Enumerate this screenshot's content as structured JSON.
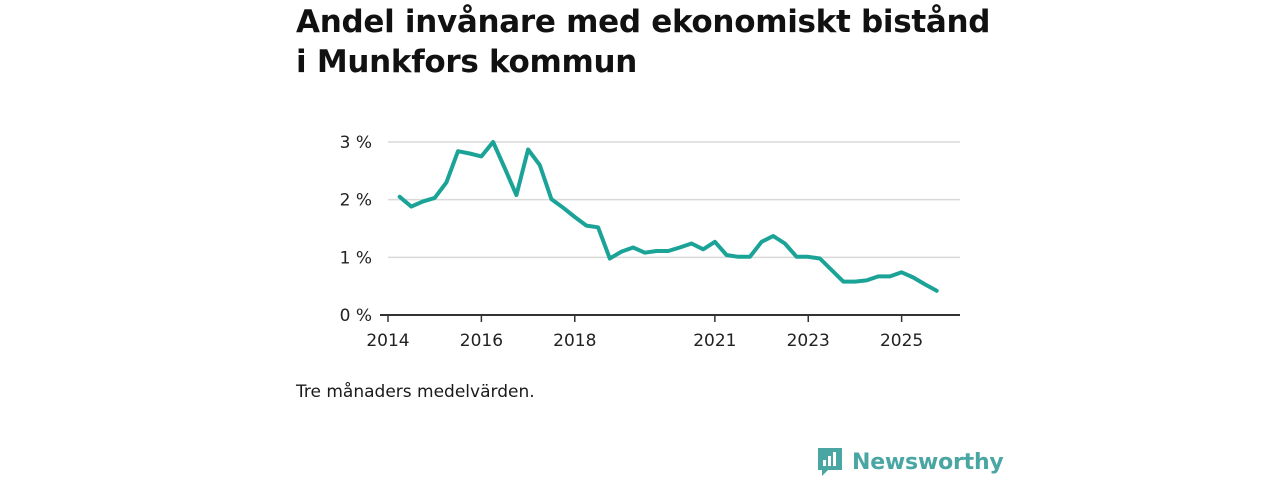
{
  "title": "Andel invånare med ekonomiskt bistånd i Munkfors kommun",
  "note": "Tre månaders medelvärden.",
  "brand": {
    "name": "Newsworthy",
    "icon": "newsworthy-logo-icon",
    "color": "#4aa6a3"
  },
  "chart_data": {
    "type": "line",
    "title": "Andel invånare med ekonomiskt bistånd i Munkfors kommun",
    "xlabel": "",
    "ylabel": "",
    "ylim": [
      0,
      3
    ],
    "xlim": [
      2014.0,
      2026.25
    ],
    "x_ticks": [
      2014,
      2016,
      2018,
      2021,
      2023,
      2025
    ],
    "x_tick_labels": [
      "2014",
      "2016",
      "2018",
      "2021",
      "2023",
      "2025"
    ],
    "y_ticks": [
      0,
      1,
      2,
      3
    ],
    "y_tick_labels": [
      "0 %",
      "1 %",
      "2 %",
      "3 %"
    ],
    "grid": "horizontal",
    "line_color": "#1aa396",
    "series": [
      {
        "x": [
          2014.25,
          2014.5,
          2014.75,
          2015.0,
          2015.25,
          2015.5,
          2015.75,
          2016.0,
          2016.25,
          2016.5,
          2016.75,
          2017.0,
          2017.25,
          2017.5,
          2017.75,
          2018.0,
          2018.25,
          2018.5,
          2018.75,
          2019.0,
          2019.25,
          2019.5,
          2019.75,
          2020.0,
          2020.25,
          2020.5,
          2020.75,
          2021.0,
          2021.25,
          2021.5,
          2021.75,
          2022.0,
          2022.25,
          2022.5,
          2022.75,
          2023.0,
          2023.25,
          2023.5,
          2023.75,
          2024.0,
          2024.25,
          2024.5,
          2024.75,
          2025.0,
          2025.25,
          2025.5,
          2025.75
        ],
        "values": [
          2.05,
          1.88,
          1.97,
          2.03,
          2.3,
          2.84,
          2.8,
          2.75,
          3.0,
          2.55,
          2.08,
          2.87,
          2.6,
          2.01,
          1.86,
          1.7,
          1.55,
          1.52,
          0.98,
          1.1,
          1.17,
          1.08,
          1.11,
          1.11,
          1.17,
          1.24,
          1.14,
          1.27,
          1.04,
          1.01,
          1.01,
          1.27,
          1.37,
          1.24,
          1.01,
          1.01,
          0.98,
          0.78,
          0.58,
          0.58,
          0.6,
          0.67,
          0.67,
          0.74,
          0.65,
          0.53,
          0.42
        ]
      }
    ]
  }
}
